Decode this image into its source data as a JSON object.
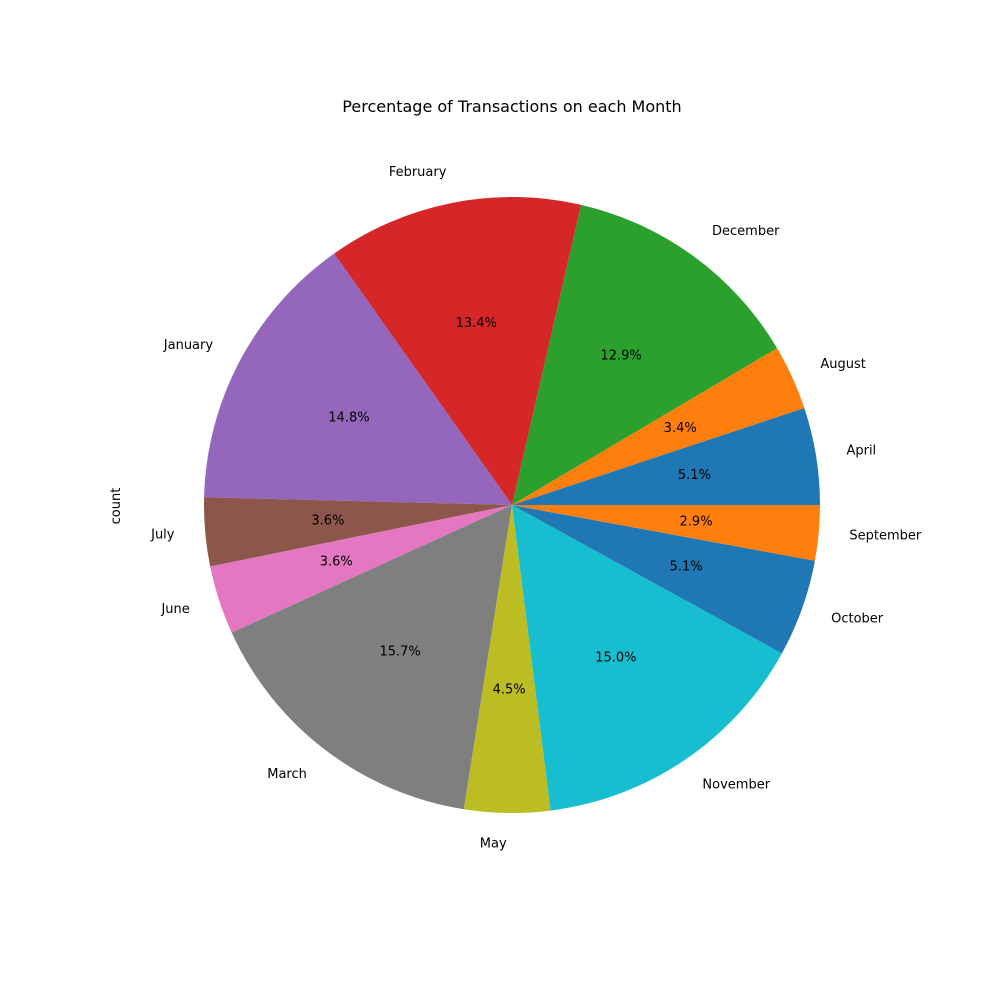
{
  "chart_data": {
    "type": "pie",
    "title": "Percentage of Transactions on each Month",
    "ylabel": "count",
    "xlabel": "",
    "start_angle_deg": 0,
    "direction": "counterclockwise",
    "slices": [
      {
        "label": "April",
        "value": 5.1,
        "pct_label": "5.1%",
        "color": "#1f77b4"
      },
      {
        "label": "August",
        "value": 3.4,
        "pct_label": "3.4%",
        "color": "#ff7f0e"
      },
      {
        "label": "December",
        "value": 12.9,
        "pct_label": "12.9%",
        "color": "#2ca02c"
      },
      {
        "label": "February",
        "value": 13.4,
        "pct_label": "13.4%",
        "color": "#d62728"
      },
      {
        "label": "January",
        "value": 14.8,
        "pct_label": "14.8%",
        "color": "#9467bd"
      },
      {
        "label": "July",
        "value": 3.6,
        "pct_label": "3.6%",
        "color": "#8c564b"
      },
      {
        "label": "June",
        "value": 3.6,
        "pct_label": "3.6%",
        "color": "#e377c2"
      },
      {
        "label": "March",
        "value": 15.7,
        "pct_label": "15.7%",
        "color": "#7f7f7f"
      },
      {
        "label": "May",
        "value": 4.5,
        "pct_label": "4.5%",
        "color": "#bcbd22"
      },
      {
        "label": "November",
        "value": 15.0,
        "pct_label": "15.0%",
        "color": "#17becf"
      },
      {
        "label": "October",
        "value": 5.1,
        "pct_label": "5.1%",
        "color": "#1f77b4"
      },
      {
        "label": "September",
        "value": 2.9,
        "pct_label": "2.9%",
        "color": "#ff7f0e"
      }
    ]
  }
}
